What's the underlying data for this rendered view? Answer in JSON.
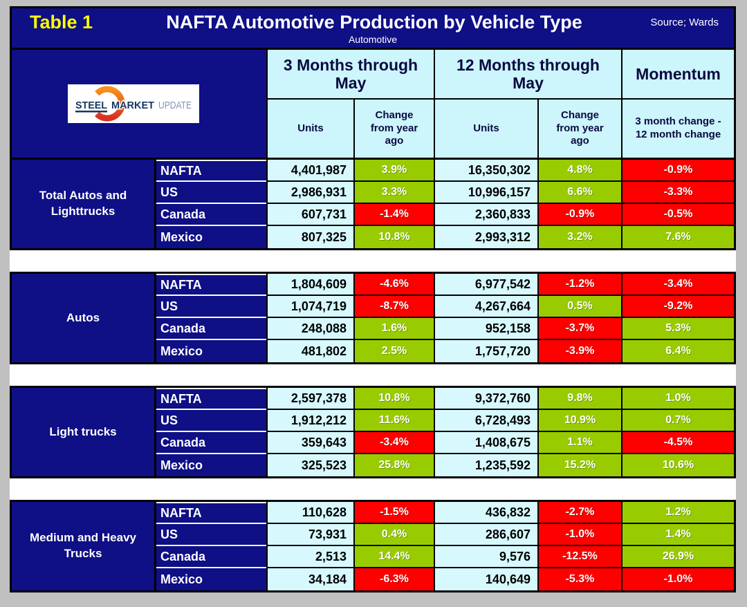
{
  "header": {
    "table_label": "Table 1",
    "title": "NAFTA Automotive Production by Vehicle Type",
    "source": "Source; Wards",
    "subtitle": "Automotive"
  },
  "logo": {
    "steel": "STEEL",
    "market": "MARKET",
    "update": "UPDATE"
  },
  "colors": {
    "navy": "#0F0F86",
    "header_cyan": "#CCF5FC",
    "units_cyan": "#D7F8FD",
    "positive_green": "#99CC00",
    "negative_red": "#FF0000",
    "table_label_yellow": "#FFFF00",
    "background_gray": "#C0C0C0"
  },
  "chart_data": {
    "type": "table",
    "title": "NAFTA Automotive Production by Vehicle Type",
    "column_groups": [
      "3 Months through May",
      "12 Months through May",
      "Momentum"
    ],
    "columns": [
      "Units",
      "Change from year ago",
      "Units",
      "Change from year ago",
      "3 month change - 12 month change"
    ],
    "sections": [
      {
        "label": "Total Autos and Lighttrucks",
        "rows": [
          {
            "region": "NAFTA",
            "units_3mo": "4,401,987",
            "chg_3mo": {
              "value": "3.9%",
              "tone": "green"
            },
            "units_12mo": "16,350,302",
            "chg_12mo": {
              "value": "4.8%",
              "tone": "green"
            },
            "momentum": {
              "value": "-0.9%",
              "tone": "red"
            }
          },
          {
            "region": "US",
            "units_3mo": "2,986,931",
            "chg_3mo": {
              "value": "3.3%",
              "tone": "green"
            },
            "units_12mo": "10,996,157",
            "chg_12mo": {
              "value": "6.6%",
              "tone": "green"
            },
            "momentum": {
              "value": "-3.3%",
              "tone": "red"
            }
          },
          {
            "region": "Canada",
            "units_3mo": "607,731",
            "chg_3mo": {
              "value": "-1.4%",
              "tone": "red"
            },
            "units_12mo": "2,360,833",
            "chg_12mo": {
              "value": "-0.9%",
              "tone": "red"
            },
            "momentum": {
              "value": "-0.5%",
              "tone": "red"
            }
          },
          {
            "region": "Mexico",
            "units_3mo": "807,325",
            "chg_3mo": {
              "value": "10.8%",
              "tone": "green"
            },
            "units_12mo": "2,993,312",
            "chg_12mo": {
              "value": "3.2%",
              "tone": "green"
            },
            "momentum": {
              "value": "7.6%",
              "tone": "green"
            }
          }
        ]
      },
      {
        "label": "Autos",
        "rows": [
          {
            "region": "NAFTA",
            "units_3mo": "1,804,609",
            "chg_3mo": {
              "value": "-4.6%",
              "tone": "red"
            },
            "units_12mo": "6,977,542",
            "chg_12mo": {
              "value": "-1.2%",
              "tone": "red"
            },
            "momentum": {
              "value": "-3.4%",
              "tone": "red"
            }
          },
          {
            "region": "US",
            "units_3mo": "1,074,719",
            "chg_3mo": {
              "value": "-8.7%",
              "tone": "red"
            },
            "units_12mo": "4,267,664",
            "chg_12mo": {
              "value": "0.5%",
              "tone": "green"
            },
            "momentum": {
              "value": "-9.2%",
              "tone": "red"
            }
          },
          {
            "region": "Canada",
            "units_3mo": "248,088",
            "chg_3mo": {
              "value": "1.6%",
              "tone": "green"
            },
            "units_12mo": "952,158",
            "chg_12mo": {
              "value": "-3.7%",
              "tone": "red"
            },
            "momentum": {
              "value": "5.3%",
              "tone": "green"
            }
          },
          {
            "region": "Mexico",
            "units_3mo": "481,802",
            "chg_3mo": {
              "value": "2.5%",
              "tone": "green"
            },
            "units_12mo": "1,757,720",
            "chg_12mo": {
              "value": "-3.9%",
              "tone": "red"
            },
            "momentum": {
              "value": "6.4%",
              "tone": "green"
            }
          }
        ]
      },
      {
        "label": "Light trucks",
        "rows": [
          {
            "region": "NAFTA",
            "units_3mo": "2,597,378",
            "chg_3mo": {
              "value": "10.8%",
              "tone": "green"
            },
            "units_12mo": "9,372,760",
            "chg_12mo": {
              "value": "9.8%",
              "tone": "green"
            },
            "momentum": {
              "value": "1.0%",
              "tone": "green"
            }
          },
          {
            "region": "US",
            "units_3mo": "1,912,212",
            "chg_3mo": {
              "value": "11.6%",
              "tone": "green"
            },
            "units_12mo": "6,728,493",
            "chg_12mo": {
              "value": "10.9%",
              "tone": "green"
            },
            "momentum": {
              "value": "0.7%",
              "tone": "green"
            }
          },
          {
            "region": "Canada",
            "units_3mo": "359,643",
            "chg_3mo": {
              "value": "-3.4%",
              "tone": "red"
            },
            "units_12mo": "1,408,675",
            "chg_12mo": {
              "value": "1.1%",
              "tone": "green"
            },
            "momentum": {
              "value": "-4.5%",
              "tone": "red"
            }
          },
          {
            "region": "Mexico",
            "units_3mo": "325,523",
            "chg_3mo": {
              "value": "25.8%",
              "tone": "green"
            },
            "units_12mo": "1,235,592",
            "chg_12mo": {
              "value": "15.2%",
              "tone": "green"
            },
            "momentum": {
              "value": "10.6%",
              "tone": "green"
            }
          }
        ]
      },
      {
        "label": "Medium and Heavy Trucks",
        "rows": [
          {
            "region": "NAFTA",
            "units_3mo": "110,628",
            "chg_3mo": {
              "value": "-1.5%",
              "tone": "red"
            },
            "units_12mo": "436,832",
            "chg_12mo": {
              "value": "-2.7%",
              "tone": "red"
            },
            "momentum": {
              "value": "1.2%",
              "tone": "green"
            }
          },
          {
            "region": "US",
            "units_3mo": "73,931",
            "chg_3mo": {
              "value": "0.4%",
              "tone": "green"
            },
            "units_12mo": "286,607",
            "chg_12mo": {
              "value": "-1.0%",
              "tone": "red"
            },
            "momentum": {
              "value": "1.4%",
              "tone": "green"
            }
          },
          {
            "region": "Canada",
            "units_3mo": "2,513",
            "chg_3mo": {
              "value": "14.4%",
              "tone": "green"
            },
            "units_12mo": "9,576",
            "chg_12mo": {
              "value": "-12.5%",
              "tone": "red"
            },
            "momentum": {
              "value": "26.9%",
              "tone": "green"
            }
          },
          {
            "region": "Mexico",
            "units_3mo": "34,184",
            "chg_3mo": {
              "value": "-6.3%",
              "tone": "red"
            },
            "units_12mo": "140,649",
            "chg_12mo": {
              "value": "-5.3%",
              "tone": "red"
            },
            "momentum": {
              "value": "-1.0%",
              "tone": "red"
            }
          }
        ]
      }
    ]
  }
}
